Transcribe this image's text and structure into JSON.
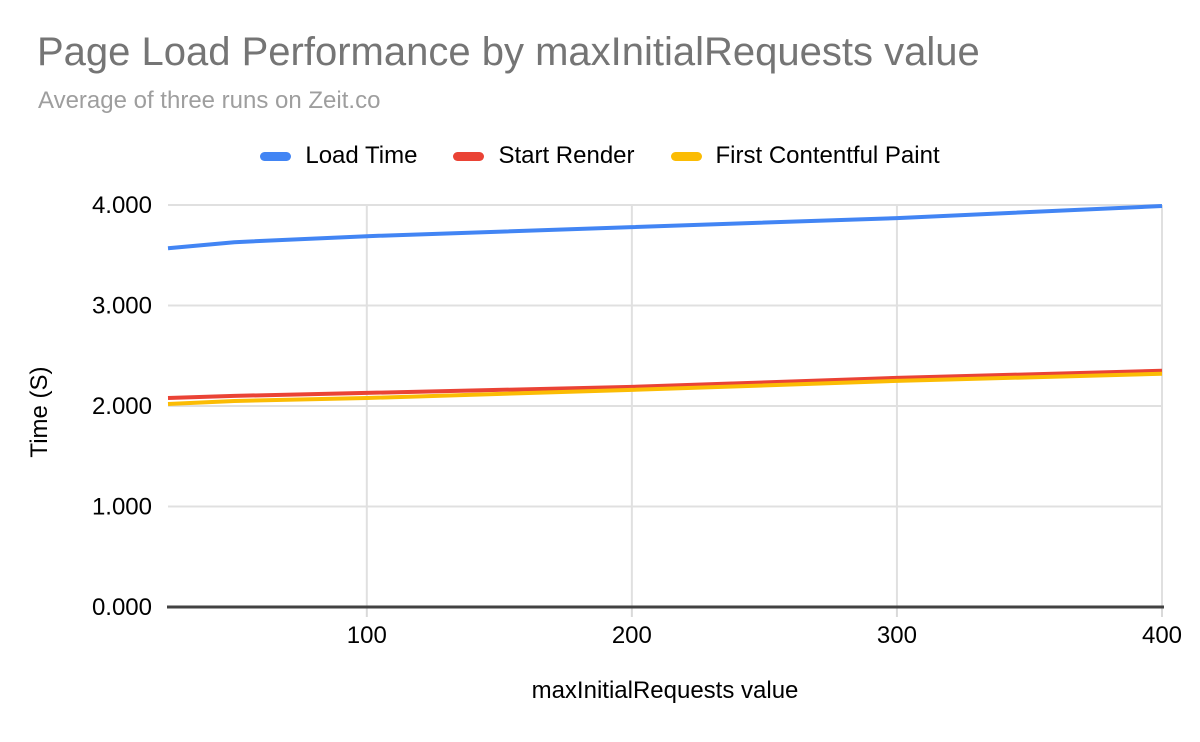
{
  "colors": {
    "background": "#ffffff",
    "title_text": "#757575",
    "subtitle_text": "#9e9e9e",
    "tick_text": "#000000",
    "gridline": "#e0e0e0",
    "axis_baseline": "#424242",
    "axis_tick_mark": "#d9d9d9"
  },
  "chart_data": {
    "type": "line",
    "title": "Page Load Performance by maxInitialRequests value",
    "subtitle": "Average of three runs on Zeit.co",
    "xlabel": "maxInitialRequests value",
    "ylabel": "Time (S)",
    "legend_position": "top",
    "grid": true,
    "xlim": [
      25,
      400
    ],
    "ylim": [
      0,
      4
    ],
    "x": [
      25,
      50,
      100,
      200,
      300,
      400
    ],
    "series": [
      {
        "name": "Load Time",
        "color": "#4285f4",
        "values": [
          3.57,
          3.63,
          3.69,
          3.78,
          3.87,
          3.99
        ]
      },
      {
        "name": "Start Render",
        "color": "#ea4335",
        "values": [
          2.08,
          2.1,
          2.13,
          2.19,
          2.28,
          2.35
        ]
      },
      {
        "name": "First Contentful Paint",
        "color": "#fbbc04",
        "values": [
          2.02,
          2.05,
          2.08,
          2.16,
          2.25,
          2.32
        ]
      }
    ],
    "x_ticks": [
      {
        "value": 100,
        "label": "100"
      },
      {
        "value": 200,
        "label": "200"
      },
      {
        "value": 300,
        "label": "300"
      },
      {
        "value": 400,
        "label": "400"
      }
    ],
    "y_ticks": [
      {
        "value": 4,
        "label": "4.000"
      },
      {
        "value": 3,
        "label": "3.000"
      },
      {
        "value": 2,
        "label": "2.000"
      },
      {
        "value": 1,
        "label": "1.000"
      },
      {
        "value": 0,
        "label": "0.000"
      }
    ]
  }
}
